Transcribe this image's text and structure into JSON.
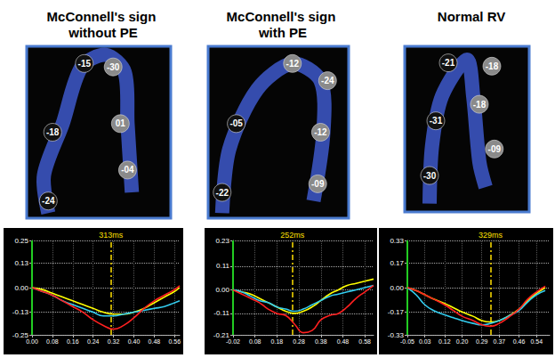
{
  "chart_data": [
    {
      "type": "line",
      "title": "McConnell's sign without PE",
      "annotations": [
        "-15",
        "-30",
        "01",
        "-18",
        "-04",
        "-24"
      ],
      "vline": {
        "x": 0.313,
        "label": "313ms"
      },
      "xlim": [
        0,
        0.58
      ],
      "xticks": [
        {
          "value": 0,
          "label": "0.00"
        },
        0.08,
        0.16,
        0.24,
        0.32,
        {
          "value": 0.4,
          "label": "0.40"
        },
        0.48,
        0.56
      ],
      "ylim": [
        -0.25,
        0.25
      ],
      "yticks": [
        -0.25,
        -0.13,
        {
          "value": 0,
          "label": "0.00"
        },
        0.13,
        0.25
      ],
      "grid": true,
      "x": [
        0,
        0.04,
        0.08,
        0.12,
        0.16,
        0.2,
        0.24,
        0.28,
        0.32,
        0.36,
        0.4,
        0.44,
        0.48,
        0.52,
        0.56,
        0.58
      ],
      "series": [
        {
          "color": "#ffff00",
          "values": [
            0,
            -0.01,
            -0.03,
            -0.05,
            -0.07,
            -0.09,
            -0.11,
            -0.13,
            -0.14,
            -0.14,
            -0.13,
            -0.11,
            -0.08,
            -0.05,
            -0.02,
            0
          ]
        },
        {
          "color": "#33ccee",
          "values": [
            0,
            -0.02,
            -0.04,
            -0.07,
            -0.09,
            -0.11,
            -0.13,
            -0.15,
            -0.15,
            -0.14,
            -0.13,
            -0.12,
            -0.11,
            -0.1,
            -0.08,
            -0.07
          ]
        },
        {
          "color": "#ff2020",
          "values": [
            0,
            -0.02,
            -0.04,
            -0.07,
            -0.1,
            -0.13,
            -0.17,
            -0.2,
            -0.22,
            -0.2,
            -0.16,
            -0.11,
            -0.07,
            -0.04,
            -0.01,
            0.01
          ]
        }
      ]
    },
    {
      "type": "line",
      "title": "McConnell's sign with PE",
      "annotations": [
        "-12",
        "-24",
        "-05",
        "-12",
        "-22",
        "-09"
      ],
      "vline": {
        "x": 0.252,
        "label": "252ms"
      },
      "xlim": [
        -0.02,
        0.62
      ],
      "xticks": [
        -0.02,
        0.08,
        0.18,
        0.28,
        0.38,
        0.48,
        0.58
      ],
      "ylim": [
        -0.21,
        0.23
      ],
      "yticks": [
        -0.21,
        -0.11,
        {
          "value": 0,
          "label": "0.00"
        },
        0.11,
        0.23
      ],
      "grid": true,
      "x": [
        -0.02,
        0.02,
        0.06,
        0.1,
        0.14,
        0.18,
        0.22,
        0.26,
        0.3,
        0.34,
        0.38,
        0.42,
        0.46,
        0.5,
        0.54,
        0.58,
        0.62
      ],
      "series": [
        {
          "color": "#ffff00",
          "values": [
            0,
            -0.01,
            -0.02,
            -0.04,
            -0.06,
            -0.08,
            -0.1,
            -0.11,
            -0.1,
            -0.08,
            -0.05,
            -0.02,
            0,
            0.02,
            0.03,
            0.04,
            0.05
          ]
        },
        {
          "color": "#33ccee",
          "values": [
            0,
            -0.01,
            -0.03,
            -0.05,
            -0.06,
            -0.08,
            -0.09,
            -0.1,
            -0.09,
            -0.07,
            -0.05,
            -0.03,
            -0.02,
            -0.01,
            0,
            0.01,
            0.02
          ]
        },
        {
          "color": "#ff2020",
          "values": [
            0,
            -0.02,
            -0.04,
            -0.06,
            -0.09,
            -0.11,
            -0.12,
            -0.16,
            -0.2,
            -0.19,
            -0.14,
            -0.12,
            -0.11,
            -0.08,
            -0.04,
            -0.01,
            0.02
          ]
        }
      ]
    },
    {
      "type": "line",
      "title": "Normal RV",
      "annotations": [
        "-21",
        "-18",
        "-31",
        "-18",
        "-30",
        "-09"
      ],
      "vline": {
        "x": 0.329,
        "label": "329ms"
      },
      "xlim": [
        -0.05,
        0.6
      ],
      "xticks": [
        -0.05,
        0.03,
        0.12,
        {
          "value": 0.2,
          "label": "0.20"
        },
        0.29,
        0.37,
        0.46,
        0.54
      ],
      "ylim": [
        -0.33,
        0.33
      ],
      "yticks": [
        -0.33,
        -0.17,
        {
          "value": 0,
          "label": "0.00"
        },
        0.17,
        0.33
      ],
      "grid": true,
      "x": [
        -0.05,
        -0.01,
        0.03,
        0.07,
        0.12,
        0.16,
        0.2,
        0.25,
        0.29,
        0.33,
        0.37,
        0.41,
        0.46,
        0.5,
        0.54,
        0.58
      ],
      "series": [
        {
          "color": "#ffff00",
          "values": [
            0,
            -0.02,
            -0.05,
            -0.08,
            -0.11,
            -0.14,
            -0.17,
            -0.2,
            -0.23,
            -0.24,
            -0.23,
            -0.2,
            -0.15,
            -0.09,
            -0.04,
            0
          ]
        },
        {
          "color": "#33ccee",
          "values": [
            0,
            -0.05,
            -0.12,
            -0.16,
            -0.19,
            -0.21,
            -0.23,
            -0.25,
            -0.26,
            -0.25,
            -0.23,
            -0.2,
            -0.16,
            -0.1,
            -0.05,
            -0.02
          ]
        },
        {
          "color": "#ff2020",
          "values": [
            0,
            -0.02,
            -0.05,
            -0.08,
            -0.12,
            -0.16,
            -0.2,
            -0.23,
            -0.26,
            -0.27,
            -0.25,
            -0.21,
            -0.15,
            -0.08,
            -0.03,
            0.01
          ]
        }
      ]
    }
  ]
}
